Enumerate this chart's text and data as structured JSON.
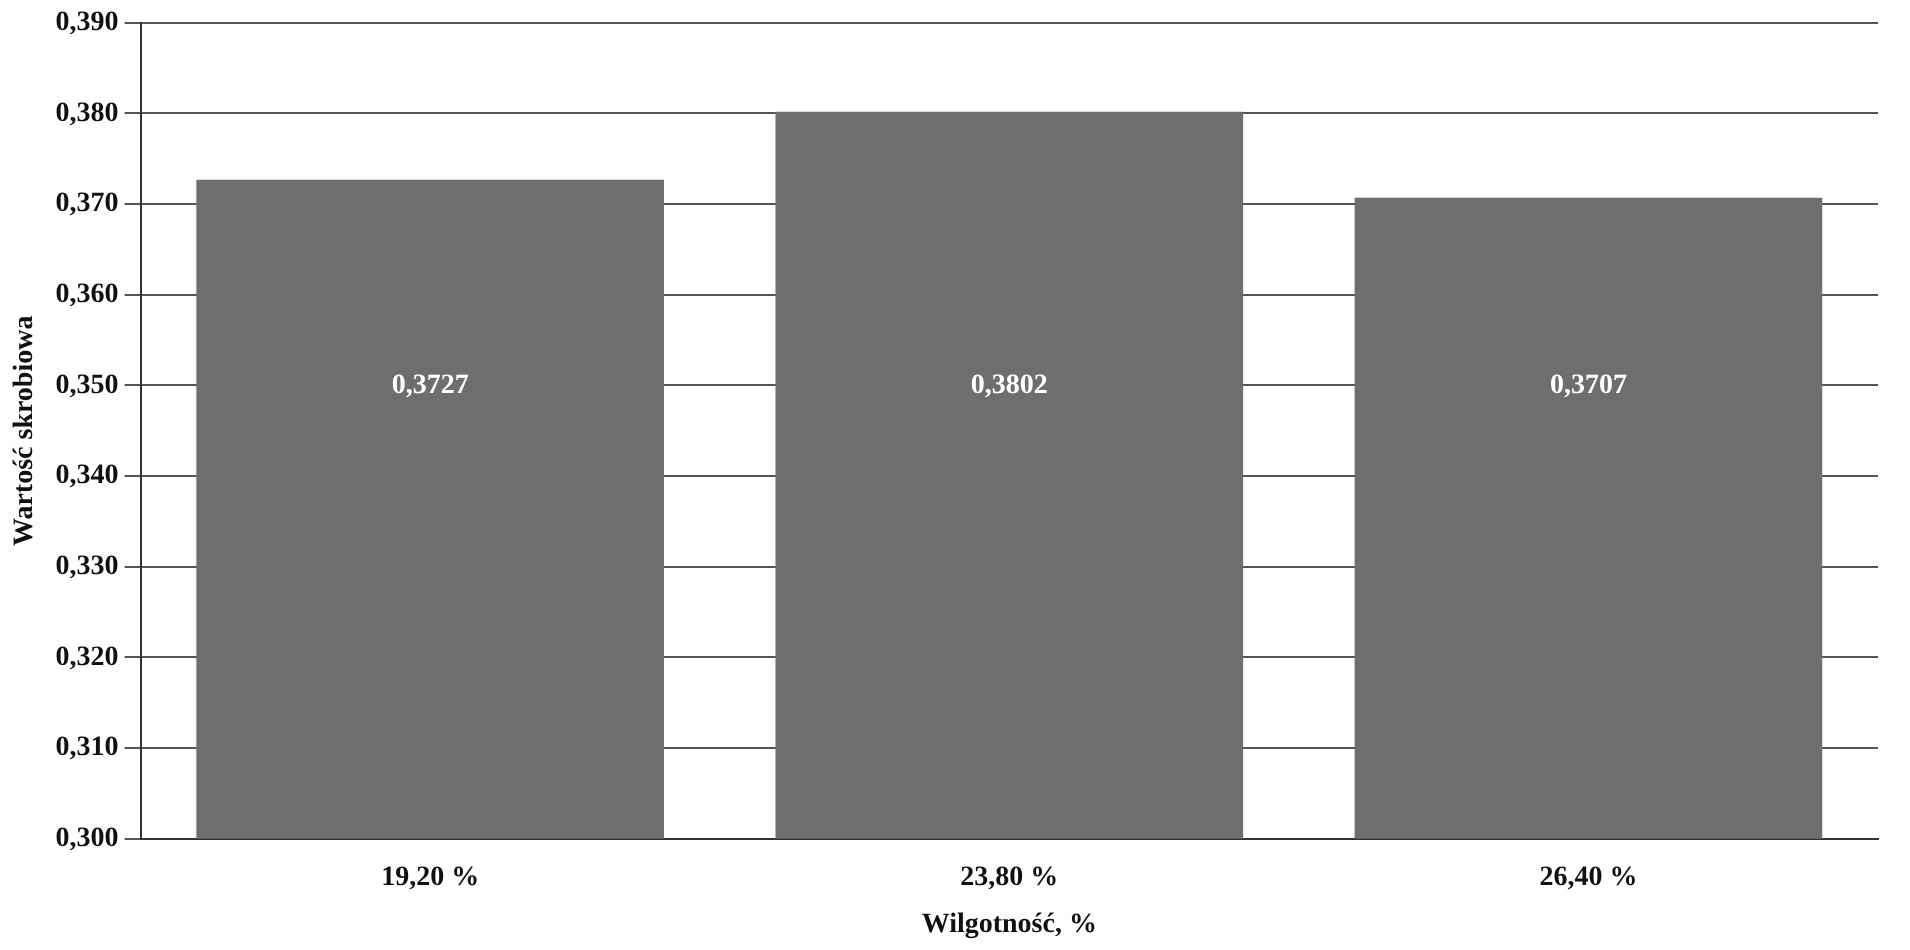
{
  "chart_data": {
    "type": "bar",
    "xlabel": "Wilgotność, %",
    "ylabel": "Wartość skrobiowa",
    "categories": [
      "19,20 %",
      "23,80 %",
      "26,40 %"
    ],
    "values": [
      0.3727,
      0.3802,
      0.3707
    ],
    "color": "#6e6e6e",
    "value_labels": [
      "0,3727",
      "0,3802",
      "0,3707"
    ],
    "ylim": [
      0.3,
      0.39
    ],
    "yticks": [
      {
        "value": 0.3,
        "label": "0,300"
      },
      {
        "value": 0.31,
        "label": "0,310"
      },
      {
        "value": 0.32,
        "label": "0,320"
      },
      {
        "value": 0.33,
        "label": "0,330"
      },
      {
        "value": 0.34,
        "label": "0,340"
      },
      {
        "value": 0.35,
        "label": "0,350"
      },
      {
        "value": 0.36,
        "label": "0,360"
      },
      {
        "value": 0.37,
        "label": "0,370"
      },
      {
        "value": 0.38,
        "label": "0,380"
      },
      {
        "value": 0.39,
        "label": "0,390"
      }
    ],
    "grid": "y",
    "legend": false
  }
}
